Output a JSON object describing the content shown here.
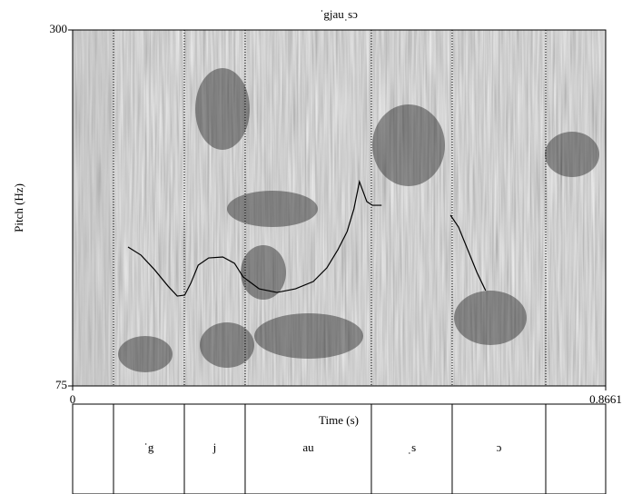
{
  "chart_data": {
    "type": "line",
    "title": "ˈgjauˌsɔ",
    "x_label": "Time (s)",
    "y_label": "Pitch (Hz)",
    "xlim": [
      0,
      0.8661
    ],
    "xticks": [
      0,
      0.8661
    ],
    "ylim": [
      75,
      300
    ],
    "yticks": [
      75,
      300
    ],
    "series": [
      {
        "color": "#000000",
        "x": [
          0.09,
          0.111,
          0.133,
          0.155,
          0.17,
          0.182,
          0.192,
          0.204,
          0.221,
          0.244,
          0.263,
          0.277,
          0.303,
          0.332,
          0.362,
          0.391,
          0.413,
          0.431,
          0.446,
          0.457,
          0.466,
          0.478,
          0.487,
          0.502,
          null,
          0.614,
          0.627,
          0.642,
          0.657,
          0.671
        ],
        "values": [
          162.8,
          157.7,
          148.5,
          138.1,
          131.8,
          132.4,
          139.9,
          151.3,
          155.9,
          156.5,
          152.5,
          143.9,
          136.4,
          134.1,
          136.4,
          141.0,
          149.6,
          161.1,
          172.6,
          186.9,
          204.1,
          191.5,
          189.2,
          189.2,
          null,
          182.9,
          175.4,
          161.1,
          146.7,
          135.3
        ]
      }
    ],
    "tier": {
      "boundaries": [
        0.0664,
        0.1815,
        0.2803,
        0.4854,
        0.6167,
        0.7687
      ],
      "labels": [
        "ˈg",
        "j",
        "au",
        "ˌs",
        "ɔ"
      ]
    }
  }
}
